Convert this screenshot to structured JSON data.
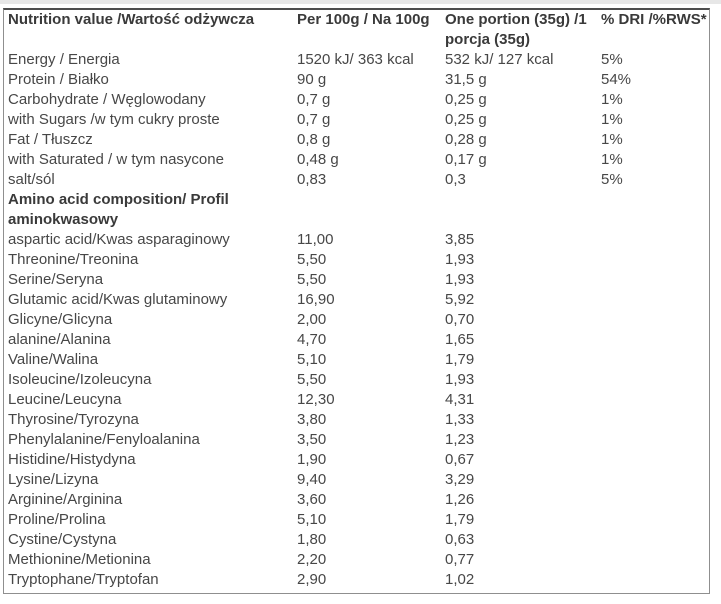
{
  "table": {
    "header": {
      "nutrition_value": "Nutrition value /Wartość odżywcza",
      "per_100g": "Per 100g / Na 100g",
      "one_portion": "One portion (35g) /1\nporcja (35g)",
      "dri": "% DRI /%RWS*"
    },
    "nutrients": [
      {
        "label": "Energy / Energia",
        "per100": "1520 kJ/ 363 kcal",
        "portion": "532 kJ/ 127 kcal",
        "dri": "5%"
      },
      {
        "label": "Protein / Białko",
        "per100": "90 g",
        "portion": "31,5 g",
        "dri": "54%"
      },
      {
        "label": "Carbohydrate / Węglowodany",
        "per100": "0,7 g",
        "portion": "0,25 g",
        "dri": "1%"
      },
      {
        "label": "with Sugars /w tym cukry proste",
        "per100": "0,7 g",
        "portion": "0,25 g",
        "dri": "1%"
      },
      {
        "label": "Fat / Tłuszcz",
        "per100": "0,8 g",
        "portion": "0,28 g",
        "dri": "1%"
      },
      {
        "label": "with Saturated / w tym nasycone",
        "per100": "0,48 g",
        "portion": "0,17 g",
        "dri": "1%"
      },
      {
        "label": "salt/sól",
        "per100": "0,83",
        "portion": "0,3",
        "dri": "5%"
      }
    ],
    "section_header": "Amino acid composition/ Profil\naminokwasowy",
    "amino_acids": [
      {
        "label": "aspartic acid/Kwas asparaginowy",
        "per100": "11,00",
        "portion": "3,85"
      },
      {
        "label": "Threonine/Treonina",
        "per100": "5,50",
        "portion": "1,93"
      },
      {
        "label": "Serine/Seryna",
        "per100": "5,50",
        "portion": "1,93"
      },
      {
        "label": "Glutamic acid/Kwas glutaminowy",
        "per100": "16,90",
        "portion": "5,92"
      },
      {
        "label": "Glicyne/Glicyna",
        "per100": "2,00",
        "portion": "0,70"
      },
      {
        "label": "alanine/Alanina",
        "per100": "4,70",
        "portion": "1,65"
      },
      {
        "label": "Valine/Walina",
        "per100": "5,10",
        "portion": "1,79"
      },
      {
        "label": "Isoleucine/Izoleucyna",
        "per100": "5,50",
        "portion": "1,93"
      },
      {
        "label": "Leucine/Leucyna",
        "per100": "12,30",
        "portion": "4,31"
      },
      {
        "label": "Thyrosine/Tyrozyna",
        "per100": "3,80",
        "portion": "1,33"
      },
      {
        "label": "Phenylalanine/Fenyloalanina",
        "per100": "3,50",
        "portion": "1,23"
      },
      {
        "label": "Histidine/Histydyna",
        "per100": "1,90",
        "portion": "0,67"
      },
      {
        "label": "Lysine/Lizyna",
        "per100": "9,40",
        "portion": "3,29"
      },
      {
        "label": "Arginine/Arginina",
        "per100": "3,60",
        "portion": "1,26"
      },
      {
        "label": "Proline/Prolina",
        "per100": "5,10",
        "portion": "1,79"
      },
      {
        "label": "Cystine/Cystyna",
        "per100": "1,80",
        "portion": "0,63"
      },
      {
        "label": "Methionine/Metionina",
        "per100": "2,20",
        "portion": "0,77"
      },
      {
        "label": "Tryptophane/Tryptofan",
        "per100": "2,90",
        "portion": "1,02"
      }
    ]
  },
  "colors": {
    "text": "#474747",
    "header_text": "#3a3a3a",
    "border": "#8f8f8f",
    "border_top": "#4d4d4d",
    "top_strip": "#e7e7e7"
  }
}
